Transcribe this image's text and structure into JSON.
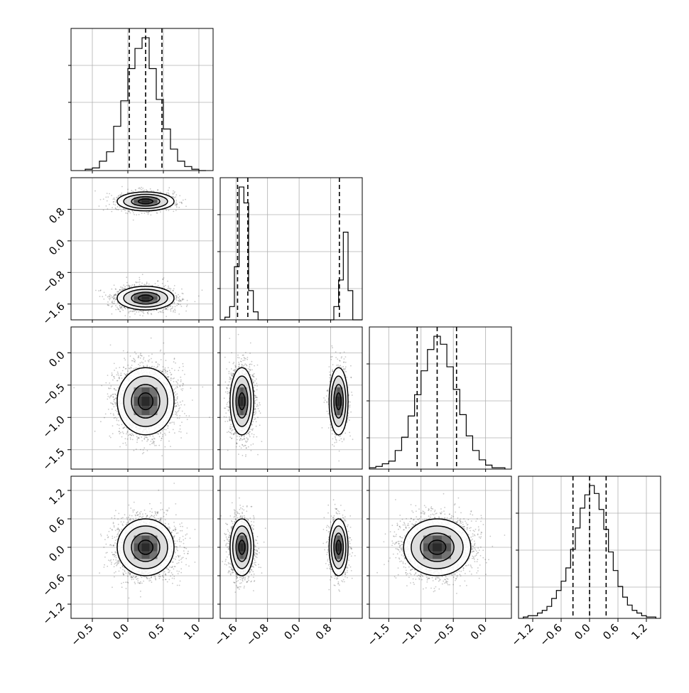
{
  "chart_data": {
    "type": "corner",
    "params": 4,
    "grid": true,
    "axes": [
      {
        "lim": [
          -0.8,
          1.2
        ],
        "ticks": [
          -0.5,
          0.0,
          0.5,
          1.0
        ],
        "labels": [
          "−0.5",
          "0.0",
          "0.5",
          "1.0"
        ]
      },
      {
        "lim": [
          -2.0,
          1.6
        ],
        "ticks": [
          -1.6,
          -0.8,
          0.0,
          0.8
        ],
        "labels": [
          "−1.6",
          "−0.8",
          "0.0",
          "0.8"
        ]
      },
      {
        "lim": [
          -1.8,
          0.4
        ],
        "ticks": [
          -1.5,
          -1.0,
          -0.5,
          0.0
        ],
        "labels": [
          "−1.5",
          "−1.0",
          "−0.5",
          "0.0"
        ]
      },
      {
        "lim": [
          -1.5,
          1.5
        ],
        "ticks": [
          -1.2,
          -0.6,
          0.0,
          0.6,
          1.2
        ],
        "labels": [
          "−1.2",
          "−0.6",
          "0.0",
          "0.6",
          "1.2"
        ]
      }
    ],
    "histograms": [
      {
        "param": 0,
        "quantiles": [
          0.02,
          0.25,
          0.48
        ],
        "bin_edges": [
          -0.6,
          -0.5,
          -0.4,
          -0.3,
          -0.2,
          -0.1,
          0.0,
          0.1,
          0.2,
          0.3,
          0.4,
          0.5,
          0.6,
          0.7,
          0.8,
          0.9,
          1.0,
          1.1
        ],
        "counts": [
          1,
          2,
          7,
          14,
          33,
          52,
          76,
          91,
          99,
          76,
          53,
          31,
          16,
          7,
          3,
          1,
          0
        ]
      },
      {
        "param": 1,
        "quantiles": [
          -1.56,
          -1.3,
          1.02
        ],
        "bin_edges": [
          -2.0,
          -1.88,
          -1.76,
          -1.64,
          -1.52,
          -1.4,
          -1.28,
          -1.16,
          -1.04,
          -0.92,
          -0.8,
          -0.68,
          -0.56,
          -0.44,
          -0.32,
          -0.2,
          -0.08,
          0.04,
          0.16,
          0.28,
          0.4,
          0.52,
          0.64,
          0.76,
          0.88,
          1.0,
          1.12,
          1.24,
          1.36,
          1.48,
          1.6
        ],
        "counts": [
          0,
          2,
          10,
          40,
          100,
          88,
          22,
          6,
          0,
          0,
          0,
          0,
          0,
          0,
          0,
          0,
          0,
          0,
          0,
          0,
          0,
          0,
          0,
          0,
          10,
          30,
          66,
          22,
          0,
          0
        ]
      },
      {
        "param": 2,
        "quantiles": [
          -1.06,
          -0.75,
          -0.45
        ],
        "bin_edges": [
          -1.8,
          -1.7,
          -1.6,
          -1.5,
          -1.4,
          -1.3,
          -1.2,
          -1.1,
          -1.0,
          -0.9,
          -0.8,
          -0.7,
          -0.6,
          -0.5,
          -0.4,
          -0.3,
          -0.2,
          -0.1,
          0.0,
          0.1,
          0.2,
          0.3
        ],
        "counts": [
          1,
          2,
          4,
          6,
          14,
          24,
          40,
          56,
          74,
          90,
          100,
          94,
          77,
          60,
          41,
          25,
          14,
          7,
          3,
          1,
          1
        ]
      },
      {
        "param": 3,
        "quantiles": [
          -0.35,
          0.0,
          0.35
        ],
        "bin_edges": [
          -1.4,
          -1.3,
          -1.2,
          -1.1,
          -1.0,
          -0.9,
          -0.8,
          -0.7,
          -0.6,
          -0.5,
          -0.4,
          -0.3,
          -0.2,
          -0.1,
          0.0,
          0.1,
          0.2,
          0.3,
          0.4,
          0.5,
          0.6,
          0.7,
          0.8,
          0.9,
          1.0,
          1.1,
          1.2,
          1.3,
          1.4
        ],
        "counts": [
          1,
          2,
          2,
          4,
          6,
          9,
          15,
          21,
          28,
          38,
          52,
          68,
          83,
          93,
          100,
          94,
          82,
          67,
          50,
          36,
          24,
          16,
          10,
          6,
          4,
          2,
          1,
          1
        ]
      }
    ],
    "pairs": [
      {
        "x": 0,
        "y": 1,
        "modes": [
          {
            "cx": 0.25,
            "cy": 1.0,
            "sx": 0.2,
            "sy": 0.12,
            "weight": 0.32
          },
          {
            "cx": 0.25,
            "cy": -1.45,
            "sx": 0.2,
            "sy": 0.15,
            "weight": 0.68
          }
        ]
      },
      {
        "x": 0,
        "y": 2,
        "modes": [
          {
            "cx": 0.25,
            "cy": -0.75,
            "sx": 0.2,
            "sy": 0.26,
            "weight": 1.0
          }
        ]
      },
      {
        "x": 1,
        "y": 2,
        "modes": [
          {
            "cx": -1.45,
            "cy": -0.75,
            "sx": 0.15,
            "sy": 0.26,
            "weight": 0.68
          },
          {
            "cx": 1.0,
            "cy": -0.75,
            "sx": 0.12,
            "sy": 0.26,
            "weight": 0.32
          }
        ]
      },
      {
        "x": 0,
        "y": 3,
        "modes": [
          {
            "cx": 0.25,
            "cy": 0.0,
            "sx": 0.2,
            "sy": 0.3,
            "weight": 1.0
          }
        ]
      },
      {
        "x": 1,
        "y": 3,
        "modes": [
          {
            "cx": -1.45,
            "cy": 0.0,
            "sx": 0.15,
            "sy": 0.3,
            "weight": 0.68
          },
          {
            "cx": 1.0,
            "cy": 0.0,
            "sx": 0.12,
            "sy": 0.3,
            "weight": 0.32
          }
        ]
      },
      {
        "x": 2,
        "y": 3,
        "modes": [
          {
            "cx": -0.75,
            "cy": 0.0,
            "sx": 0.26,
            "sy": 0.3,
            "weight": 1.0
          }
        ]
      }
    ],
    "contour_levels": [
      0.3,
      0.55,
      0.8,
      0.95
    ]
  }
}
